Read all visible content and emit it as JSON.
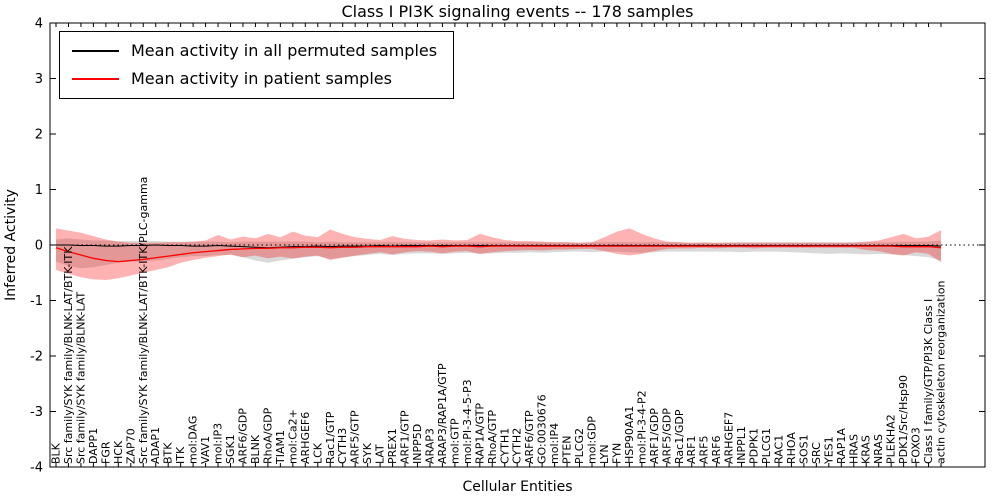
{
  "title": "Class I PI3K signaling events -- 178 samples",
  "axes": {
    "x_label": "Cellular Entities",
    "y_label": "Inferred Activity",
    "y_ticks": [
      -4,
      -3,
      -2,
      -1,
      0,
      1,
      2,
      3,
      4
    ]
  },
  "legend": {
    "items": [
      {
        "label": "Mean activity in all permuted samples",
        "color": "#000000"
      },
      {
        "label": "Mean activity in patient samples",
        "color": "#ff0000"
      }
    ]
  },
  "chart_data": {
    "type": "line",
    "title": "Class I PI3K signaling events -- 178 samples",
    "xlabel": "Cellular Entities",
    "ylabel": "Inferred Activity",
    "ylim": [
      -4,
      4
    ],
    "grid": false,
    "zero_line": true,
    "legend_position": "upper left",
    "categories": [
      "BLK",
      "Src family/SYK family/BLNK-LAT/BTK-ITK",
      "Src family/SYK family/BLNK-LAT",
      "DAPP1",
      "FGR",
      "HCK",
      "ZAP70",
      "Src family/SYK family/BLNK-LAT/BTK-ITK/PLC-gamma",
      "ADAP1",
      "BTK",
      "ITK",
      "mol:DAG",
      "VAV1",
      "mol:IP3",
      "SGK1",
      "ARF6/GDP",
      "BLNK",
      "RhoA/GDP",
      "TIAM1",
      "mol:Ca2+",
      "ARHGEF6",
      "LCK",
      "Rac1/GTP",
      "CYTH3",
      "ARF5/GTP",
      "SYK",
      "LAT",
      "PREX1",
      "ARF1/GTP",
      "INPP5D",
      "ARAP3",
      "ARAP3/RAP1A/GTP",
      "mol:GTP",
      "mol:PI-3-4-5-P3",
      "RAP1A/GTP",
      "RhoA/GTP",
      "CYTH1",
      "CYTH2",
      "ARF6/GTP",
      "GO:0030676",
      "mol:IP4",
      "PTEN",
      "PLCG2",
      "mol:GDP",
      "LYN",
      "FYN",
      "HSP90AA1",
      "mol:PI-3-4-P2",
      "ARF1/GDP",
      "ARF5/GDP",
      "Rac1/GDP",
      "ARF1",
      "ARF5",
      "ARF6",
      "ARHGEF7",
      "INPPL1",
      "PDPK1",
      "PLCG1",
      "RAC1",
      "RHOA",
      "SOS1",
      "SRC",
      "YES1",
      "RAP1A",
      "HRAS",
      "KRAS",
      "NRAS",
      "PLEKHA2",
      "PDK1/Src/Hsp90",
      "FOXO3",
      "Class I family/GTP/PI3K Class I",
      "actin cytoskeleton reorganization"
    ],
    "series": [
      {
        "name": "Mean activity in all permuted samples",
        "color": "#000000",
        "band_color": "rgba(0,0,0,0.15)",
        "values": [
          0.0,
          0.0,
          -0.01,
          -0.01,
          -0.02,
          -0.02,
          -0.01,
          -0.01,
          0.0,
          -0.01,
          -0.01,
          -0.02,
          -0.02,
          -0.01,
          -0.02,
          -0.03,
          -0.04,
          -0.05,
          -0.04,
          -0.03,
          -0.03,
          -0.02,
          -0.03,
          -0.02,
          -0.02,
          -0.02,
          -0.01,
          -0.02,
          -0.01,
          -0.01,
          -0.01,
          -0.01,
          -0.01,
          -0.01,
          -0.01,
          -0.01,
          -0.01,
          -0.01,
          -0.01,
          -0.01,
          -0.01,
          -0.01,
          -0.01,
          -0.01,
          -0.01,
          -0.01,
          -0.01,
          -0.01,
          -0.01,
          -0.01,
          -0.01,
          -0.01,
          -0.01,
          -0.01,
          -0.01,
          -0.01,
          -0.01,
          -0.01,
          -0.01,
          -0.01,
          -0.01,
          -0.01,
          -0.01,
          -0.01,
          -0.01,
          -0.01,
          -0.01,
          -0.01,
          -0.01,
          -0.01,
          -0.01,
          -0.02
        ],
        "band_upper": [
          0.1,
          0.12,
          0.1,
          0.08,
          0.08,
          0.07,
          0.07,
          0.08,
          0.07,
          0.06,
          0.06,
          0.06,
          0.06,
          0.06,
          0.05,
          0.06,
          0.06,
          0.06,
          0.06,
          0.06,
          0.06,
          0.05,
          0.06,
          0.05,
          0.05,
          0.05,
          0.05,
          0.05,
          0.05,
          0.05,
          0.05,
          0.05,
          0.05,
          0.05,
          0.05,
          0.05,
          0.05,
          0.05,
          0.05,
          0.05,
          0.05,
          0.05,
          0.04,
          0.05,
          0.05,
          0.05,
          0.05,
          0.05,
          0.05,
          0.05,
          0.05,
          0.04,
          0.05,
          0.04,
          0.05,
          0.05,
          0.05,
          0.05,
          0.05,
          0.05,
          0.05,
          0.05,
          0.05,
          0.05,
          0.05,
          0.05,
          0.05,
          0.05,
          0.06,
          0.06,
          0.06,
          0.08
        ],
        "band_lower": [
          -0.3,
          -0.38,
          -0.42,
          -0.4,
          -0.36,
          -0.32,
          -0.3,
          -0.3,
          -0.28,
          -0.25,
          -0.22,
          -0.2,
          -0.2,
          -0.18,
          -0.18,
          -0.22,
          -0.28,
          -0.32,
          -0.28,
          -0.25,
          -0.22,
          -0.2,
          -0.25,
          -0.22,
          -0.2,
          -0.18,
          -0.16,
          -0.18,
          -0.16,
          -0.15,
          -0.15,
          -0.16,
          -0.15,
          -0.14,
          -0.16,
          -0.15,
          -0.14,
          -0.14,
          -0.13,
          -0.14,
          -0.13,
          -0.12,
          -0.12,
          -0.13,
          -0.12,
          -0.12,
          -0.13,
          -0.14,
          -0.13,
          -0.12,
          -0.12,
          -0.12,
          -0.12,
          -0.12,
          -0.12,
          -0.13,
          -0.12,
          -0.12,
          -0.12,
          -0.13,
          -0.14,
          -0.15,
          -0.16,
          -0.15,
          -0.16,
          -0.17,
          -0.16,
          -0.17,
          -0.18,
          -0.2,
          -0.22,
          -0.28
        ]
      },
      {
        "name": "Mean activity in patient samples",
        "color": "#ff0000",
        "band_color": "rgba(255,0,0,0.30)",
        "values": [
          -0.05,
          -0.12,
          -0.18,
          -0.24,
          -0.28,
          -0.3,
          -0.28,
          -0.26,
          -0.23,
          -0.2,
          -0.17,
          -0.14,
          -0.12,
          -0.1,
          -0.08,
          -0.07,
          -0.06,
          -0.06,
          -0.05,
          -0.05,
          -0.04,
          -0.04,
          -0.05,
          -0.04,
          -0.04,
          -0.03,
          -0.03,
          -0.03,
          -0.03,
          -0.03,
          -0.02,
          -0.03,
          -0.02,
          -0.02,
          -0.03,
          -0.02,
          -0.02,
          -0.02,
          -0.02,
          -0.02,
          -0.02,
          -0.02,
          -0.02,
          -0.02,
          -0.02,
          -0.02,
          -0.02,
          -0.02,
          -0.02,
          -0.02,
          -0.02,
          -0.02,
          -0.02,
          -0.02,
          -0.02,
          -0.02,
          -0.02,
          -0.02,
          -0.02,
          -0.02,
          -0.02,
          -0.02,
          -0.02,
          -0.02,
          -0.02,
          -0.02,
          -0.02,
          -0.02,
          -0.03,
          -0.03,
          -0.03,
          -0.05
        ],
        "band_upper": [
          0.3,
          0.26,
          0.22,
          0.16,
          0.1,
          0.06,
          0.04,
          0.04,
          0.04,
          0.05,
          0.05,
          0.06,
          0.08,
          0.18,
          0.1,
          0.15,
          0.12,
          0.2,
          0.14,
          0.24,
          0.17,
          0.14,
          0.28,
          0.2,
          0.14,
          0.11,
          0.09,
          0.16,
          0.11,
          0.09,
          0.08,
          0.1,
          0.08,
          0.09,
          0.2,
          0.14,
          0.09,
          0.07,
          0.07,
          0.06,
          0.05,
          0.05,
          0.04,
          0.05,
          0.14,
          0.24,
          0.3,
          0.2,
          0.12,
          0.06,
          0.05,
          0.04,
          0.04,
          0.04,
          0.04,
          0.04,
          0.04,
          0.04,
          0.04,
          0.04,
          0.04,
          0.04,
          0.04,
          0.04,
          0.04,
          0.06,
          0.08,
          0.14,
          0.2,
          0.12,
          0.15,
          0.27
        ],
        "band_lower": [
          -0.45,
          -0.52,
          -0.58,
          -0.62,
          -0.63,
          -0.6,
          -0.55,
          -0.5,
          -0.45,
          -0.4,
          -0.32,
          -0.27,
          -0.23,
          -0.2,
          -0.17,
          -0.22,
          -0.19,
          -0.24,
          -0.21,
          -0.24,
          -0.21,
          -0.19,
          -0.27,
          -0.23,
          -0.19,
          -0.16,
          -0.13,
          -0.17,
          -0.13,
          -0.11,
          -0.12,
          -0.15,
          -0.12,
          -0.11,
          -0.16,
          -0.13,
          -0.11,
          -0.1,
          -0.09,
          -0.1,
          -0.08,
          -0.08,
          -0.07,
          -0.07,
          -0.11,
          -0.16,
          -0.19,
          -0.16,
          -0.11,
          -0.07,
          -0.06,
          -0.06,
          -0.05,
          -0.06,
          -0.05,
          -0.05,
          -0.06,
          -0.05,
          -0.05,
          -0.05,
          -0.05,
          -0.05,
          -0.05,
          -0.05,
          -0.05,
          -0.09,
          -0.11,
          -0.16,
          -0.19,
          -0.13,
          -0.16,
          -0.31
        ]
      }
    ]
  }
}
